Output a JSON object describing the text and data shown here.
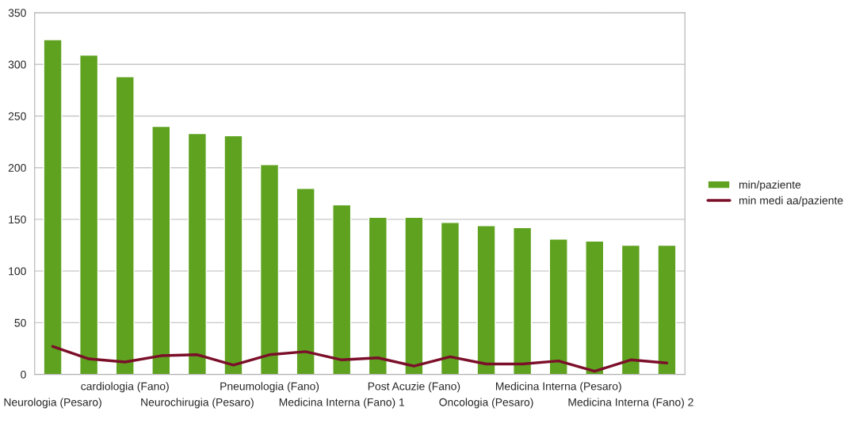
{
  "chart_data": {
    "type": "bar",
    "categories": [
      "Neurologia (Pesaro)",
      null,
      "cardiologia (Fano)",
      null,
      "Neurochirugia (Pesaro)",
      null,
      "Pneumologia (Fano)",
      null,
      "Medicina Interna (Fano) 1",
      null,
      "Post Acuzie (Fano)",
      null,
      "Oncologia (Pesaro)",
      null,
      "Medicina Interna (Pesaro)",
      null,
      "Medicina Interna (Fano) 2",
      null
    ],
    "series": [
      {
        "name": "min/paziente",
        "color": "#5ea21f",
        "values": [
          324,
          309,
          288,
          240,
          233,
          231,
          203,
          180,
          164,
          152,
          152,
          147,
          144,
          142,
          131,
          129,
          125,
          125
        ]
      },
      {
        "name": "min medi aa/paziente",
        "type": "line",
        "color": "#7b0f2a",
        "values": [
          27,
          15,
          12,
          18,
          19,
          9,
          19,
          22,
          14,
          16,
          8,
          17,
          10,
          10,
          13,
          3,
          14,
          11
        ]
      }
    ],
    "ylim": [
      0,
      350
    ],
    "yticks": [
      0,
      50,
      100,
      150,
      200,
      250,
      300,
      350
    ],
    "grid": "y",
    "legend": "right",
    "marker": "none",
    "line_style": "solid"
  }
}
